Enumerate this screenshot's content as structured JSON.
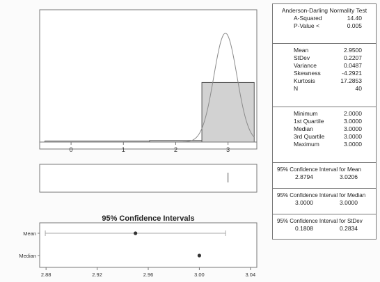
{
  "chart_data": [
    {
      "type": "histogram",
      "x_ticks": [
        "0",
        "1",
        "2",
        "3"
      ],
      "xlim": [
        -0.6,
        3.55
      ],
      "bins": [
        {
          "from": -0.5,
          "to": 1.5,
          "count": 0
        },
        {
          "from": 1.5,
          "to": 2.5,
          "count": 1
        },
        {
          "from": 2.5,
          "to": 3.5,
          "count": 39
        }
      ],
      "normal_curve": {
        "mean": 2.95,
        "stdev": 0.2207
      },
      "grid": false
    },
    {
      "type": "boxplot",
      "xlim": [
        -0.6,
        3.55
      ],
      "marker_value": 3.0
    },
    {
      "type": "interval",
      "title": "95% Confidence Intervals",
      "x_ticks": [
        "2.88",
        "2.92",
        "2.96",
        "3.00",
        "3.04"
      ],
      "xlim": [
        2.875,
        3.045
      ],
      "rows": [
        {
          "label": "Mean",
          "center": 2.95,
          "low": 2.8794,
          "high": 3.0206
        },
        {
          "label": "Median",
          "center": 3.0,
          "low": 3.0,
          "high": 3.0
        }
      ]
    }
  ],
  "stats": {
    "ad_title": "Anderson-Darling Normality Test",
    "ad_rows": [
      {
        "label": "A-Squared",
        "value": "14.40"
      },
      {
        "label": "P-Value <",
        "value": "0.005"
      }
    ],
    "moment_rows": [
      {
        "label": "Mean",
        "value": "2.9500"
      },
      {
        "label": "StDev",
        "value": "0.2207"
      },
      {
        "label": "Variance",
        "value": "0.0487"
      },
      {
        "label": "Skewness",
        "value": "-4.2921"
      },
      {
        "label": "Kurtosis",
        "value": "17.2853"
      },
      {
        "label": "N",
        "value": "40"
      }
    ],
    "quantile_rows": [
      {
        "label": "Minimum",
        "value": "2.0000"
      },
      {
        "label": "1st Quartile",
        "value": "3.0000"
      },
      {
        "label": "Median",
        "value": "3.0000"
      },
      {
        "label": "3rd Quartile",
        "value": "3.0000"
      },
      {
        "label": "Maximum",
        "value": "3.0000"
      }
    ],
    "ci_mean_title": "95% Confidence Interval for Mean",
    "ci_mean_low": "2.8794",
    "ci_mean_high": "3.0206",
    "ci_median_title": "95% Confidence Interval for Median",
    "ci_median_low": "3.0000",
    "ci_median_high": "3.0000",
    "ci_stdev_title": "95% Confidence Interval for StDev",
    "ci_stdev_low": "0.1808",
    "ci_stdev_high": "0.2834"
  },
  "colors": {
    "bar_fill": "#d2d2d2",
    "outline": "#555555",
    "curve": "#8a8a8a",
    "interval_line": "#aaaaaa",
    "dot": "#333333"
  }
}
